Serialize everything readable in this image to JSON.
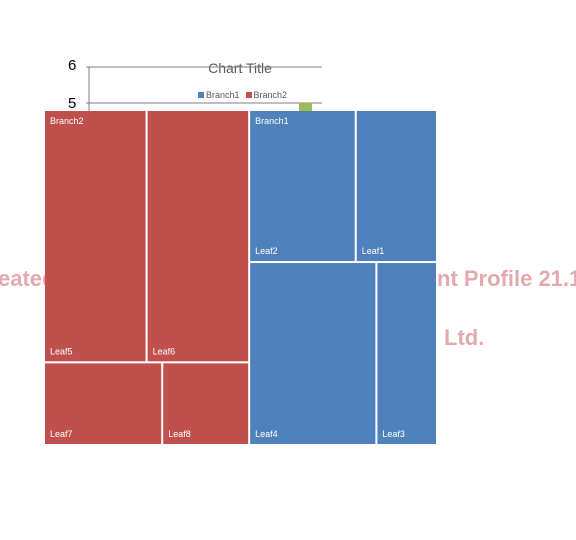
{
  "watermark": {
    "left": "eated",
    "right": "nt Profile 21.1",
    "line2": "Ltd."
  },
  "chart_data": {
    "type": "treemap",
    "title": "Chart Title",
    "y_tick_labels": [
      "6",
      "5"
    ],
    "legend_position": "top",
    "legend": [
      {
        "name": "Branch1",
        "color": "#4f81bd"
      },
      {
        "name": "Branch2",
        "color": "#c0504d"
      }
    ],
    "branches": [
      {
        "name": "Branch2",
        "color": "#c0504d",
        "leaves": [
          {
            "name": "Leaf5",
            "value": 4
          },
          {
            "name": "Leaf6",
            "value": 4
          },
          {
            "name": "Leaf7",
            "value": 1.5
          },
          {
            "name": "Leaf8",
            "value": 1.1
          }
        ]
      },
      {
        "name": "Branch1",
        "color": "#4f81bd",
        "leaves": [
          {
            "name": "Leaf2",
            "value": 2.5
          },
          {
            "name": "Leaf1",
            "value": 1.9
          },
          {
            "name": "Leaf4",
            "value": 3.6
          },
          {
            "name": "Leaf3",
            "value": 1.7
          }
        ]
      }
    ],
    "extra_mark_color": "#9bbb59"
  }
}
